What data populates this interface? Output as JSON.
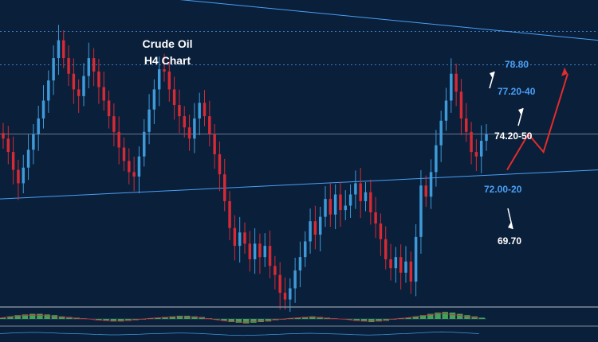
{
  "chart_data": {
    "type": "candlestick",
    "title_line1": "Crude Oil",
    "title_line2": "H4  Chart",
    "y_range": [
      66.5,
      80.2
    ],
    "grid": false,
    "levels": [
      {
        "value": 78.8,
        "label": "78.80",
        "color": "#4a9ff5",
        "style": "dotted"
      },
      {
        "value": 77.3,
        "label": "77.20-40",
        "color": "#4a9ff5",
        "style": "dotted"
      },
      {
        "value": 74.2,
        "label": "74.20-50",
        "color": "#ffffff",
        "style": "solid"
      },
      {
        "value": 72.0,
        "label": "72.00-20",
        "color": "#4a9ff5",
        "style": "trendline"
      },
      {
        "value": 69.7,
        "label": "69.70",
        "color": "#ffffff",
        "style": "none"
      }
    ],
    "trendlines": [
      {
        "name": "descending-resistance",
        "start": 81.0,
        "end": 78.4
      },
      {
        "name": "ascending-support",
        "start": 71.3,
        "end": 72.6
      }
    ],
    "closes": [
      74.0,
      73.4,
      72.6,
      72.0,
      72.7,
      73.5,
      74.2,
      74.9,
      75.7,
      76.6,
      77.6,
      78.4,
      77.6,
      76.9,
      76.2,
      75.9,
      76.8,
      77.6,
      77.0,
      76.3,
      75.7,
      75.0,
      74.3,
      73.6,
      73.0,
      72.5,
      72.3,
      73.2,
      74.3,
      75.3,
      76.2,
      77.1,
      77.0,
      76.2,
      75.5,
      75.0,
      74.5,
      74.0,
      74.9,
      75.6,
      75.0,
      74.2,
      73.3,
      72.4,
      71.2,
      70.0,
      69.2,
      69.8,
      69.3,
      68.6,
      69.3,
      68.7,
      69.2,
      68.3,
      67.9,
      67.1,
      66.8,
      67.3,
      68.1,
      68.7,
      69.4,
      70.3,
      69.7,
      70.5,
      71.3,
      70.6,
      71.5,
      70.8,
      71.0,
      71.5,
      72.0,
      71.2,
      71.6,
      70.7,
      70.2,
      69.5,
      68.6,
      68.2,
      68.7,
      68.0,
      68.5,
      67.6,
      69.6,
      71.9,
      71.4,
      72.5,
      73.7,
      74.8,
      75.7,
      76.9,
      76.1,
      74.9,
      74.3,
      73.4,
      73.2,
      73.9,
      74.2
    ],
    "projection": [
      {
        "t": 0.0,
        "value": 72.6
      },
      {
        "t": 0.35,
        "value": 74.2
      },
      {
        "t": 0.6,
        "value": 73.4
      },
      {
        "t": 1.0,
        "value": 76.9
      }
    ],
    "arrows": [
      {
        "to": "78.80",
        "color": "#ffffff"
      },
      {
        "to": "77.20-40",
        "color": "#ffffff"
      },
      {
        "to": "69.70",
        "color": "#ffffff"
      }
    ],
    "colors": {
      "background": "#0a1f3a",
      "bull": "#3f9ad9",
      "bear": "#d62a34",
      "level_blue": "#4a9ff5",
      "projection": "#e32c2c",
      "histogram": "#3fa45a"
    },
    "lower_panel": {
      "type": "histogram",
      "values": [
        0.2,
        0.4,
        0.6,
        0.7,
        0.8,
        0.8,
        0.7,
        0.6,
        0.4,
        0.3,
        0.2,
        0.1,
        0.0,
        -0.2,
        -0.3,
        -0.4,
        -0.4,
        -0.3,
        -0.2,
        -0.1,
        0.1,
        0.2,
        0.3,
        0.4,
        0.5,
        0.5,
        0.4,
        0.3,
        0.1,
        -0.1,
        -0.3,
        -0.5,
        -0.6,
        -0.7,
        -0.6,
        -0.5,
        -0.4,
        -0.2,
        -0.1,
        0.1,
        0.2,
        0.3,
        0.4,
        0.3,
        0.2,
        0.1,
        0.0,
        -0.1,
        -0.3,
        -0.4,
        -0.5,
        -0.4,
        -0.3,
        -0.1,
        0.1,
        0.2,
        0.4,
        0.6,
        0.8,
        1.0,
        1.1,
        1.0,
        0.8,
        0.6,
        0.4,
        0.2
      ]
    }
  }
}
